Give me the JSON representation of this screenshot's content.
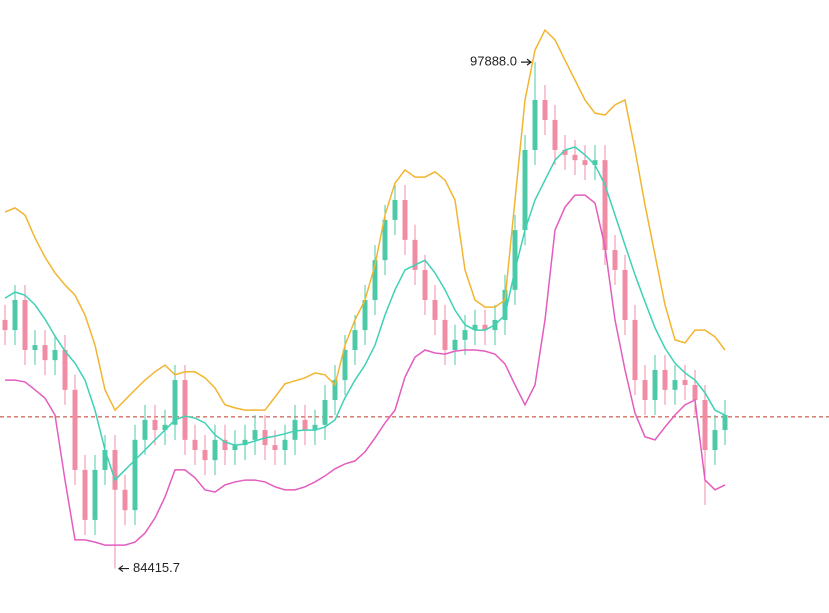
{
  "chart_data": {
    "type": "candlestick",
    "open": [
      91030,
      90760,
      91560,
      90230,
      90360,
      89960,
      90230,
      89170,
      87040,
      85710,
      87040,
      87570,
      86510,
      85970,
      87840,
      88370,
      88100,
      88240,
      89430,
      87840,
      87570,
      87300,
      87840,
      87570,
      87700,
      87840,
      88100,
      87700,
      87570,
      87840,
      88370,
      88100,
      88240,
      88900,
      89430,
      90230,
      90760,
      91560,
      92620,
      93690,
      94220,
      93160,
      92360,
      91560,
      91030,
      90230,
      90500,
      90760,
      90900,
      90760,
      91030,
      91830,
      93420,
      95550,
      96880,
      96350,
      95550,
      95420,
      95280,
      95150,
      95280,
      92890,
      92360,
      91030,
      89430,
      88900,
      89700,
      89170,
      89430,
      89300,
      88900,
      87570,
      88100
    ],
    "high": [
      91430,
      91960,
      91960,
      90760,
      90760,
      90630,
      90630,
      89570,
      87440,
      87440,
      87970,
      87970,
      86910,
      88240,
      88770,
      88770,
      88640,
      89830,
      89830,
      88240,
      87970,
      88240,
      88240,
      88100,
      88240,
      88500,
      88500,
      88100,
      88240,
      88770,
      88770,
      88640,
      89300,
      89830,
      90630,
      91160,
      91960,
      93020,
      94090,
      94620,
      94620,
      93560,
      92760,
      91960,
      91430,
      90900,
      91160,
      91300,
      91300,
      91430,
      92230,
      93820,
      95950,
      97888.0,
      97280,
      96750,
      95950,
      95820,
      95680,
      95680,
      95680,
      93290,
      92760,
      91430,
      89830,
      90100,
      90100,
      89830,
      89830,
      89700,
      89300,
      88500,
      88900
    ],
    "low": [
      90360,
      90360,
      89830,
      89830,
      89560,
      89560,
      88770,
      86640,
      85310,
      85310,
      86640,
      84415.7,
      85570,
      85570,
      87440,
      87700,
      87700,
      87840,
      87440,
      87170,
      86900,
      86900,
      87170,
      87170,
      87300,
      87440,
      87300,
      87170,
      87170,
      87440,
      87700,
      87700,
      87840,
      88500,
      89030,
      89830,
      90360,
      91160,
      92220,
      93290,
      92760,
      91960,
      91160,
      90630,
      89830,
      89830,
      90100,
      90360,
      90360,
      90360,
      90630,
      91430,
      93020,
      95150,
      95950,
      95150,
      95020,
      94880,
      94750,
      94750,
      92490,
      91960,
      90630,
      89030,
      88500,
      88500,
      88770,
      88770,
      88900,
      88500,
      86110,
      87170,
      87700
    ],
    "close": [
      90760,
      91560,
      90230,
      90360,
      89960,
      90230,
      89170,
      87040,
      85710,
      87040,
      87570,
      86510,
      85970,
      87840,
      88370,
      88100,
      88240,
      89430,
      87840,
      87570,
      87300,
      87840,
      87570,
      87700,
      87840,
      88100,
      87700,
      87570,
      87840,
      88370,
      88100,
      88240,
      88900,
      89430,
      90230,
      90760,
      91560,
      92620,
      93690,
      94220,
      93160,
      92360,
      91560,
      91030,
      90230,
      90500,
      90760,
      90900,
      90760,
      91030,
      91830,
      93420,
      95550,
      96880,
      96350,
      95550,
      95420,
      95280,
      95150,
      95280,
      92890,
      92360,
      91030,
      89430,
      88900,
      89700,
      89170,
      89430,
      89300,
      88900,
      87570,
      88100,
      88500
    ],
    "up_color": "#4ec9a8",
    "down_color": "#f08ca4",
    "lines": [
      {
        "color": "#f2b530",
        "values": [
          93900,
          94010,
          93820,
          93210,
          92700,
          92280,
          91960,
          91690,
          91160,
          90360,
          89170,
          88630,
          88900,
          89170,
          89430,
          89650,
          89830,
          89570,
          89650,
          89650,
          89490,
          89220,
          88770,
          88690,
          88630,
          88630,
          88630,
          88980,
          89330,
          89410,
          89490,
          89620,
          89570,
          89300,
          90360,
          91030,
          91560,
          92490,
          93820,
          94670,
          95020,
          94830,
          94830,
          94970,
          94750,
          94220,
          92360,
          91560,
          91370,
          91370,
          91560,
          94220,
          96880,
          98210,
          98740,
          98480,
          97940,
          97410,
          96880,
          96530,
          96480,
          96750,
          96880,
          95550,
          94090,
          92760,
          91430,
          90500,
          90420,
          90760,
          90760,
          90580,
          90230
        ]
      },
      {
        "color": "#3fd1b4",
        "values": [
          91610,
          91770,
          91690,
          91430,
          91050,
          90600,
          90200,
          89880,
          89430,
          88630,
          87570,
          86770,
          87040,
          87300,
          87570,
          87840,
          88100,
          88370,
          88470,
          88420,
          88290,
          87970,
          87780,
          87700,
          87730,
          87810,
          87890,
          87940,
          88000,
          88080,
          88100,
          88100,
          88180,
          88370,
          88960,
          89430,
          89830,
          90360,
          91160,
          91830,
          92360,
          92490,
          92620,
          92280,
          91830,
          91290,
          90900,
          90760,
          90760,
          90900,
          91160,
          92360,
          93420,
          94220,
          94750,
          95280,
          95550,
          95630,
          95420,
          95150,
          94620,
          93820,
          93020,
          92230,
          91510,
          90820,
          90280,
          89880,
          89620,
          89430,
          89090,
          88630,
          88500
        ]
      },
      {
        "color": "#e35cbf",
        "values": [
          89430,
          89430,
          89380,
          89170,
          88950,
          88500,
          86770,
          85180,
          85180,
          85120,
          85040,
          85040,
          85040,
          85120,
          85360,
          85760,
          86320,
          87040,
          87040,
          86830,
          86510,
          86450,
          86640,
          86720,
          86770,
          86770,
          86720,
          86590,
          86510,
          86510,
          86590,
          86720,
          86880,
          87070,
          87200,
          87280,
          87520,
          87890,
          88290,
          88630,
          89510,
          90040,
          90230,
          90150,
          90120,
          90200,
          90230,
          90230,
          90200,
          90120,
          89860,
          89300,
          88770,
          89300,
          91030,
          93420,
          94030,
          94350,
          94350,
          94140,
          92970,
          91030,
          89700,
          88550,
          87920,
          87840,
          88180,
          88500,
          88770,
          88900,
          86770,
          86510,
          86640
        ]
      }
    ],
    "price_line": 88450,
    "price_line_color": "#c0392b",
    "max_label": "97888.0",
    "min_label": "84415.7",
    "ylim": [
      83234,
      99540
    ]
  }
}
